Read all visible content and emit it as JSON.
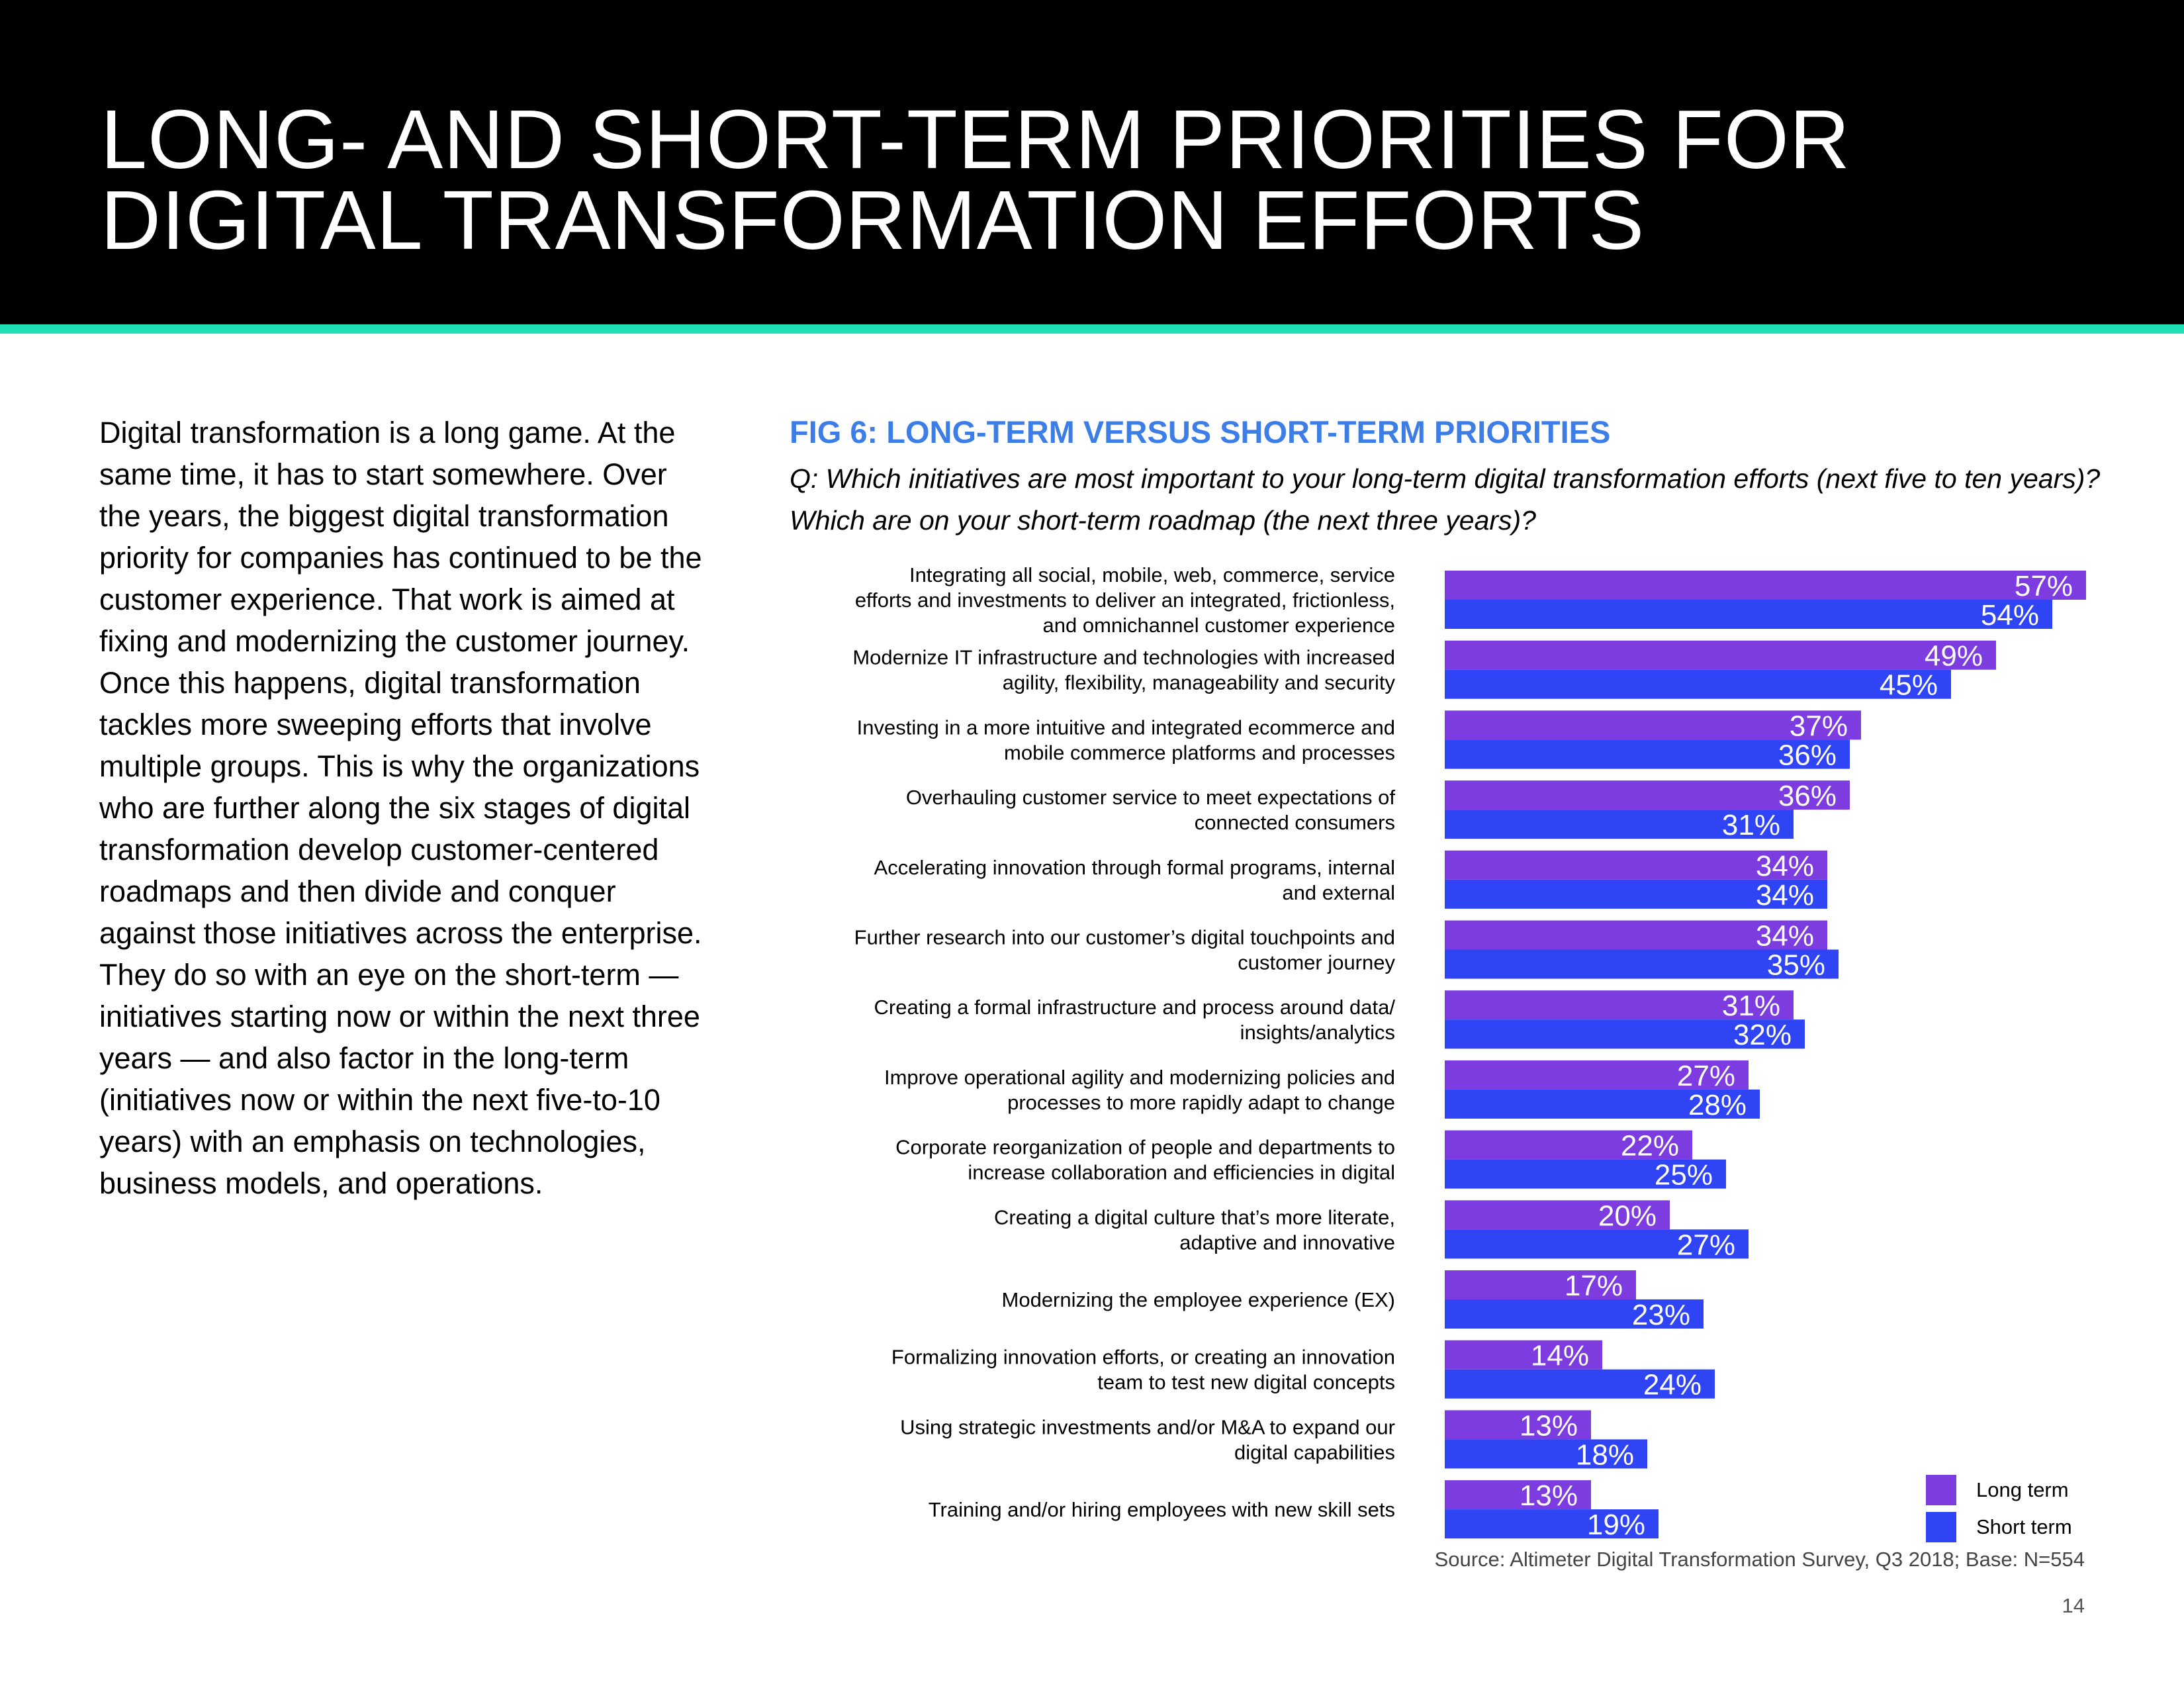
{
  "header": {
    "title": "LONG- AND SHORT-TERM PRIORITIES FOR DIGITAL TRANSFORMATION EFFORTS"
  },
  "body": {
    "paragraph": "Digital transformation is a long game. At the same time, it has to start somewhere. Over the years, the biggest digital transformation priority for companies has continued to be the customer experience. That work is aimed at fixing and modernizing the customer journey. Once this happens, digital transformation tackles more sweeping efforts that involve multiple groups. This is why the organizations who are further along the six stages of digital transformation develop customer-centered roadmaps and then divide and conquer against those initiatives across the enterprise. They do so with an eye on the short-term — initiatives starting now or within the next three years — and also factor in the long-term (initiatives now or within the next five-to-10 years) with an emphasis on technologies, business models, and operations."
  },
  "figure": {
    "title": "FIG 6: LONG-TERM VERSUS SHORT-TERM PRIORITIES",
    "question": "Q: Which initiatives are most important to your long-term digital transformation efforts (next five to ten years)? Which are on your short-term roadmap (the next three years)?",
    "source": "Source: Altimeter Digital Transformation Survey, Q3 2018; Base: N=554"
  },
  "page_number": "14",
  "colors": {
    "long_term": "#7d3ce0",
    "short_term": "#2e44f5",
    "header_bg": "#000000",
    "accent_rule": "#1fe0b4",
    "figure_title": "#3d7ee6"
  },
  "chart_data": {
    "type": "bar",
    "orientation": "horizontal",
    "title": "FIG 6: LONG-TERM VERSUS SHORT-TERM PRIORITIES",
    "categories": [
      [
        "Integrating all social, mobile, web, commerce, service",
        "efforts and investments to deliver an integrated, frictionless,",
        "and omnichannel customer experience"
      ],
      [
        "Modernize IT infrastructure and technologies with increased",
        "agility, flexibility, manageability and security"
      ],
      [
        "Investing in a more intuitive and integrated ecommerce and",
        "mobile commerce platforms and processes"
      ],
      [
        "Overhauling customer service to meet expectations of",
        "connected consumers"
      ],
      [
        "Accelerating innovation through formal programs, internal",
        "and external"
      ],
      [
        "Further research into our customer’s digital touchpoints and",
        "customer journey"
      ],
      [
        "Creating a formal infrastructure and process around data/",
        "insights/analytics"
      ],
      [
        "Improve operational agility and modernizing policies and",
        "processes to more rapidly adapt to change"
      ],
      [
        "Corporate reorganization of people and departments to",
        "increase collaboration and efficiencies in digital"
      ],
      [
        "Creating a digital culture that’s more literate,",
        "adaptive and innovative"
      ],
      [
        "Modernizing the employee experience (EX)"
      ],
      [
        "Formalizing innovation efforts, or creating an innovation",
        "team to test new digital concepts"
      ],
      [
        "Using strategic investments and/or M&A to expand our",
        "digital capabilities"
      ],
      [
        "Training and/or hiring employees with new skill sets"
      ]
    ],
    "series": [
      {
        "name": "Long term",
        "values": [
          57,
          49,
          37,
          36,
          34,
          34,
          31,
          27,
          22,
          20,
          17,
          14,
          13,
          13
        ]
      },
      {
        "name": "Short term",
        "values": [
          54,
          45,
          36,
          31,
          34,
          35,
          32,
          28,
          25,
          27,
          23,
          24,
          18,
          19
        ]
      }
    ],
    "unit": "%",
    "xlim": [
      0,
      57
    ],
    "grid": false,
    "legend_position": "bottom-right"
  }
}
